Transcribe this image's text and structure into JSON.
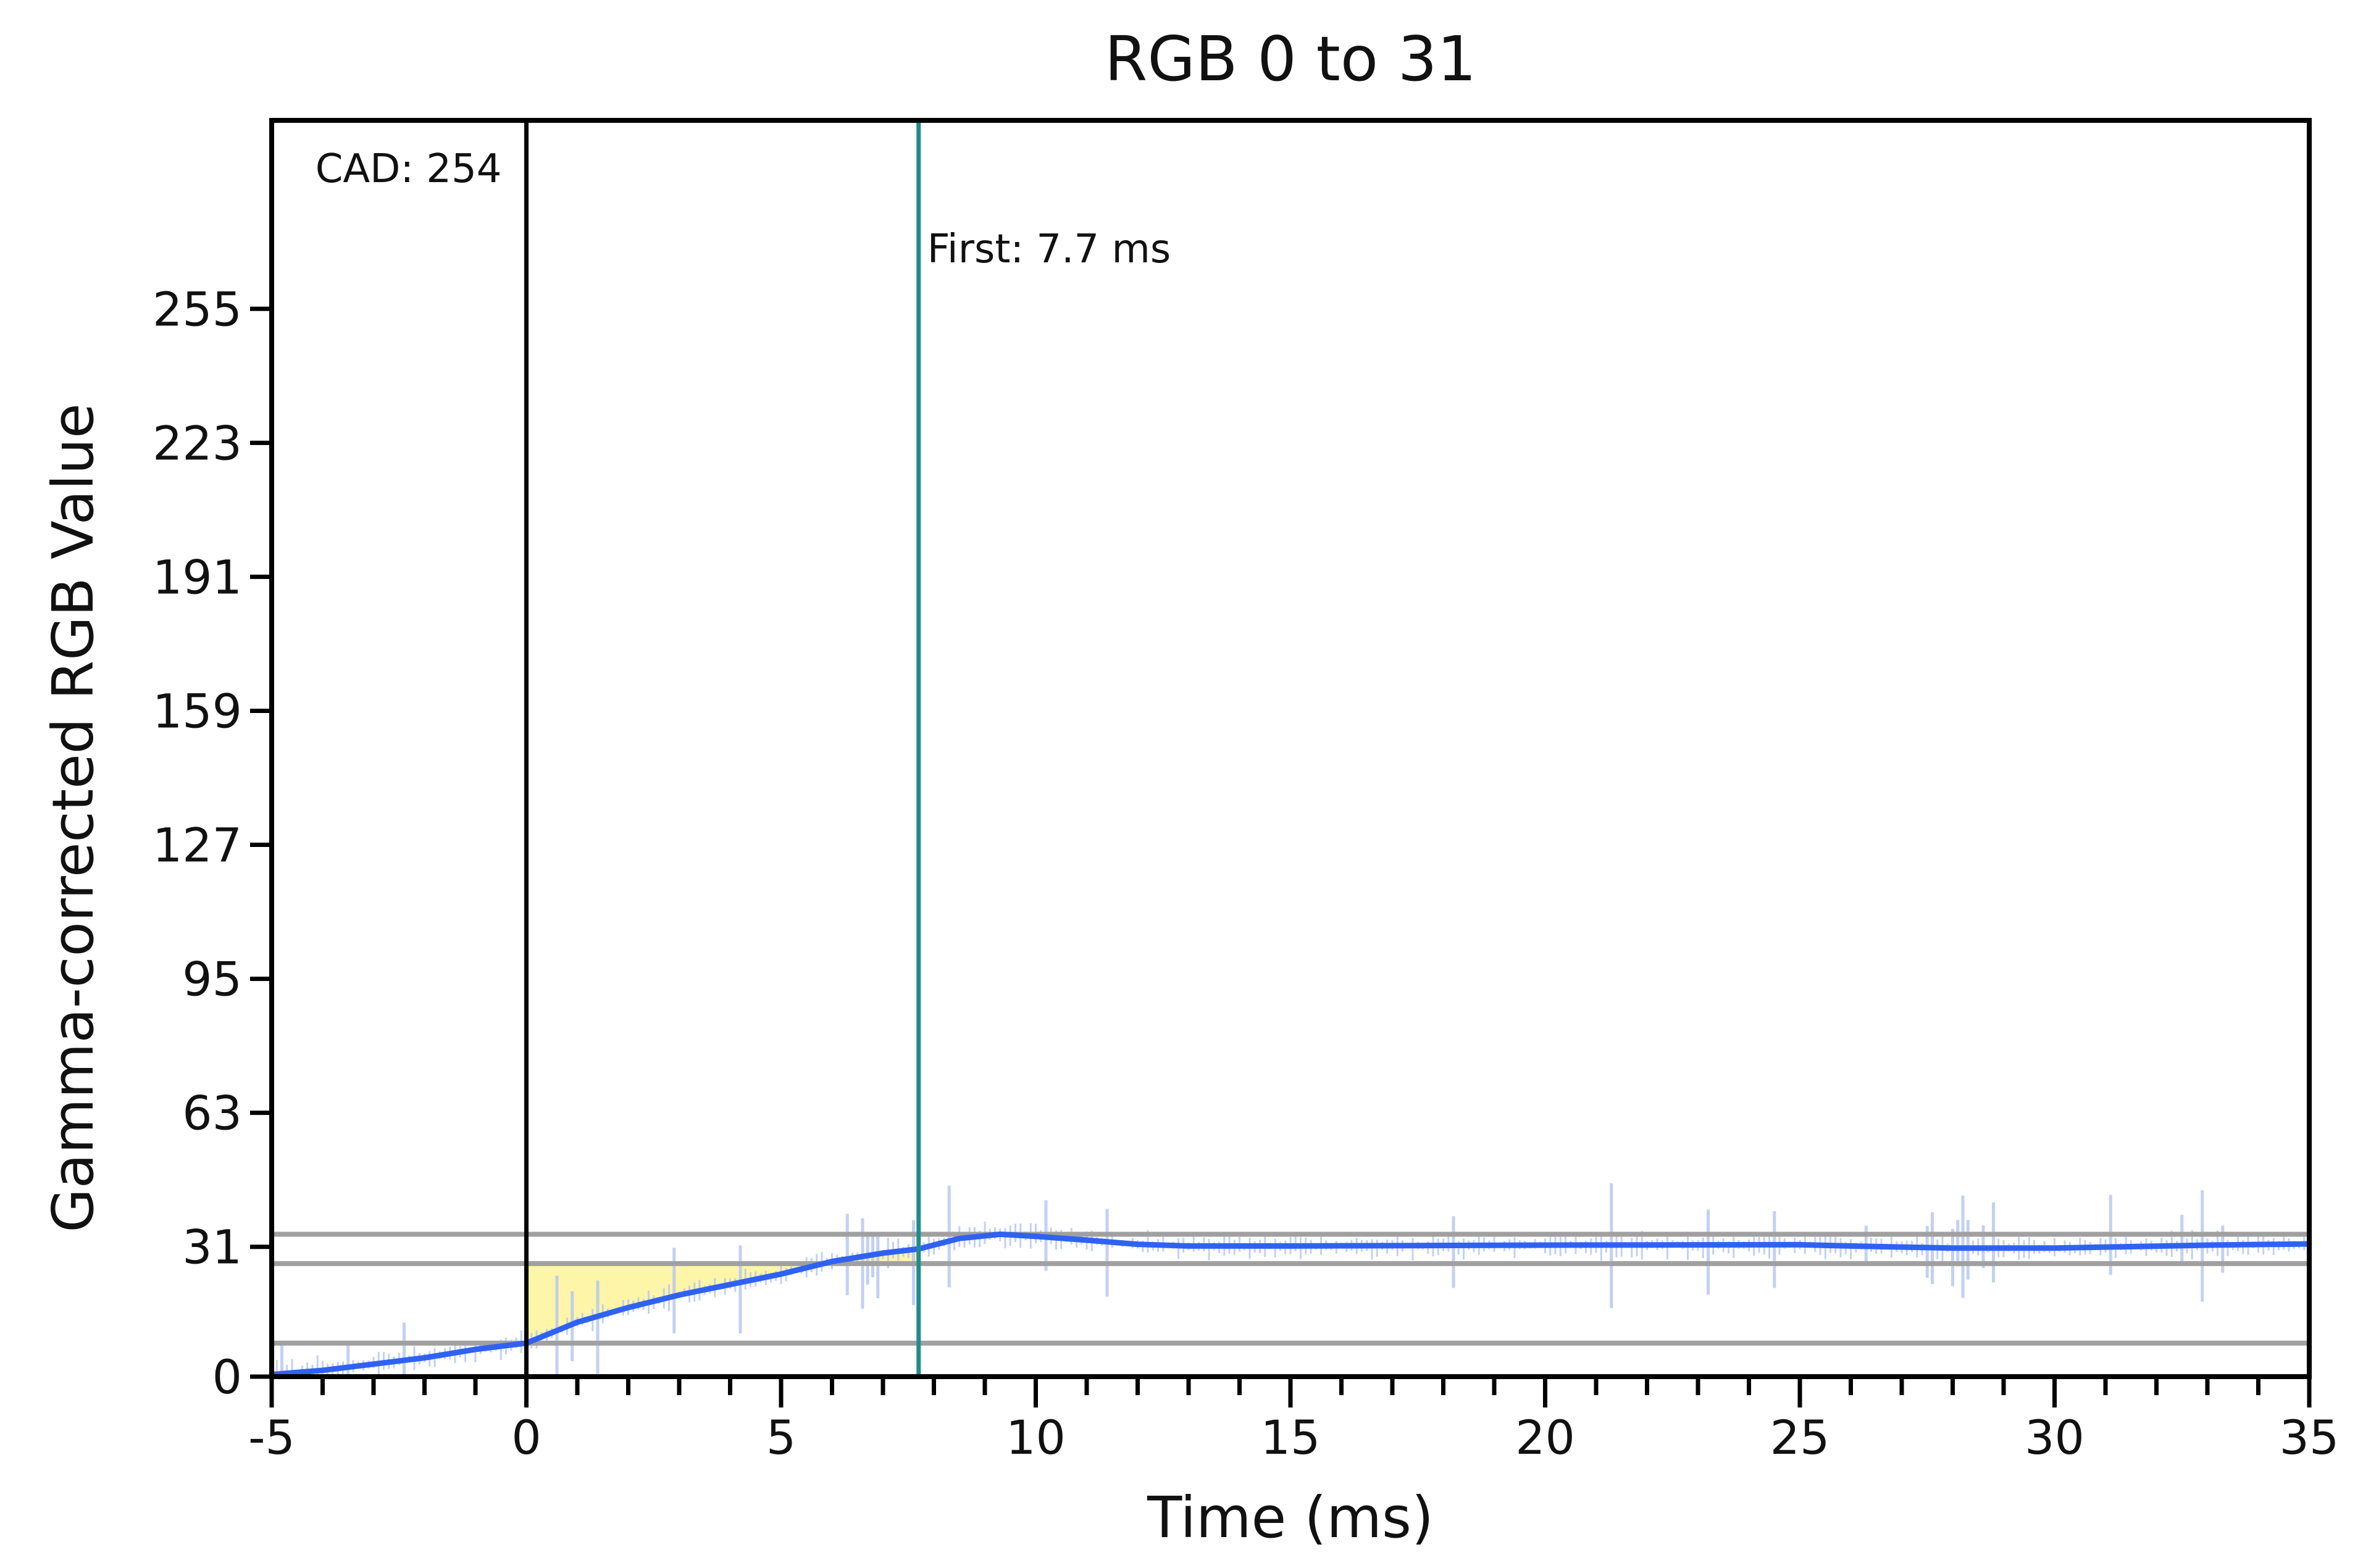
{
  "chart_data": {
    "type": "line",
    "title": "RGB 0 to 31",
    "xlabel": "Time (ms)",
    "ylabel": "Gamma-corrected RGB Value",
    "xlim": [
      -5,
      35
    ],
    "ylim": [
      0,
      300
    ],
    "x_ticks": [
      -5,
      0,
      5,
      10,
      15,
      20,
      25,
      30,
      35
    ],
    "y_ticks": [
      0,
      31,
      63,
      95,
      127,
      159,
      191,
      223,
      255
    ],
    "x_minor_step": 1,
    "grid": false,
    "legend": "none",
    "reference_lines_y": [
      8,
      27,
      34
    ],
    "series": [
      {
        "color": "#2f62f2",
        "x": [
          -5,
          -4,
          -3,
          -2,
          -1,
          0,
          1,
          2,
          3,
          4,
          5,
          6,
          7,
          7.7,
          8.5,
          9.3,
          10,
          11,
          12,
          13,
          15,
          20,
          25,
          26,
          28,
          30,
          33,
          35
        ],
        "y": [
          0.5,
          1.5,
          3,
          4.5,
          6.5,
          8,
          13,
          16.5,
          19.5,
          22,
          24.5,
          27.5,
          29.5,
          30.5,
          33,
          34,
          33.5,
          32.6,
          31.6,
          31.2,
          31.2,
          31.4,
          31.5,
          31.2,
          30.7,
          30.7,
          31.4,
          31.7
        ]
      }
    ],
    "shaded_region": {
      "color": "#fdf5a8",
      "x_start": 0,
      "x_end": 7.7,
      "y_top": 27
    },
    "vertical_markers": [
      {
        "x": 0,
        "color": "#000000",
        "label": "CAD: 254"
      },
      {
        "x": 7.7,
        "color": "#1f8c8c",
        "label": "First: 7.7 ms"
      }
    ],
    "raw_color": "#b8c8f2"
  }
}
